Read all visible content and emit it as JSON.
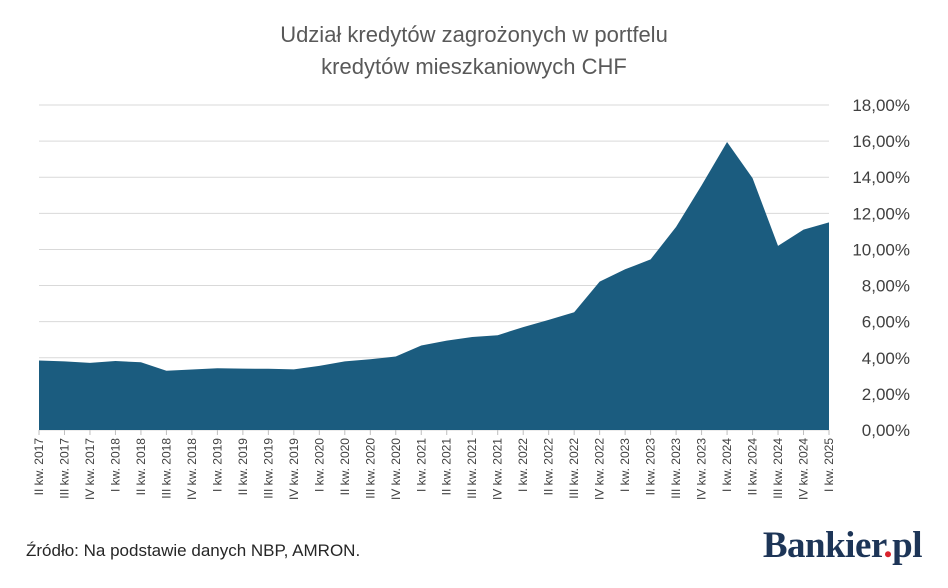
{
  "chart_data": {
    "type": "area",
    "title_line1": "Udział kredytów zagrożonych w portfelu",
    "title_line2": "kredytów mieszkaniowych CHF",
    "categories": [
      "II kw. 2017",
      "III kw. 2017",
      "IV kw. 2017",
      "I kw. 2018",
      "II kw. 2018",
      "III kw. 2018",
      "IV kw. 2018",
      "I kw. 2019",
      "II kw. 2019",
      "III kw. 2019",
      "IV kw. 2019",
      "I kw. 2020",
      "II kw. 2020",
      "III kw. 2020",
      "IV kw. 2020",
      "I kw. 2021",
      "II kw. 2021",
      "III kw. 2021",
      "IV kw. 2021",
      "I kw. 2022",
      "II kw. 2022",
      "III kw. 2022",
      "IV kw. 2022",
      "I kw. 2023",
      "II kw. 2023",
      "III kw. 2023",
      "IV kw. 2023",
      "I kw. 2024",
      "II kw. 2024",
      "III kw. 2024",
      "IV kw. 2024",
      "I kw. 2025"
    ],
    "values": [
      3.85,
      3.8,
      3.72,
      3.82,
      3.75,
      3.28,
      3.35,
      3.42,
      3.4,
      3.39,
      3.36,
      3.55,
      3.8,
      3.92,
      4.07,
      4.68,
      4.95,
      5.15,
      5.25,
      5.7,
      6.1,
      6.52,
      8.22,
      8.9,
      9.45,
      11.25,
      13.55,
      15.95,
      13.95,
      10.2,
      11.1,
      11.5
    ],
    "y_axis": {
      "position": "right",
      "min": 0,
      "max": 18,
      "ticks": [
        "0,00%",
        "2,00%",
        "4,00%",
        "6,00%",
        "8,00%",
        "10,00%",
        "12,00%",
        "14,00%",
        "16,00%",
        "18,00%"
      ]
    },
    "grid": true,
    "legend": "none",
    "fill_color": "#1b5c7f",
    "grid_color": "#d9d9d9"
  },
  "footer": {
    "source": "Źródło: Na podstawie danych NBP, AMRON.",
    "logo_main": "Bankier",
    "logo_dot": ".",
    "logo_tld": "pl"
  }
}
